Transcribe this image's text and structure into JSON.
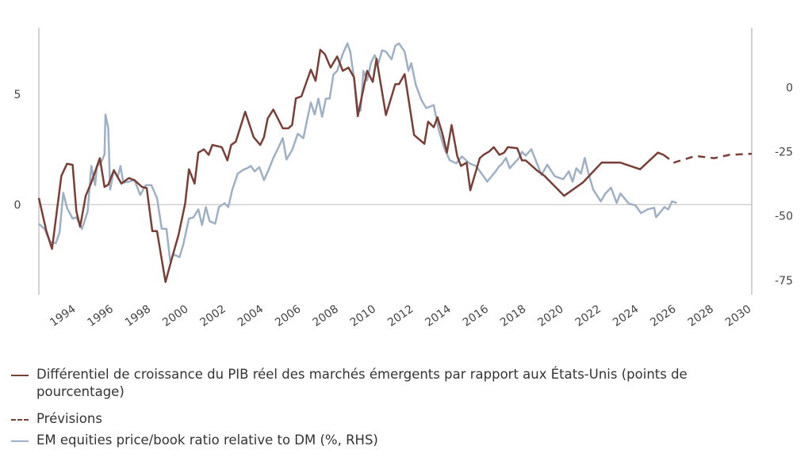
{
  "chart_data": {
    "type": "line",
    "title": "",
    "x_domain": [
      1992,
      2030
    ],
    "x_ticks": [
      "1994",
      "1996",
      "1998",
      "2000",
      "2002",
      "2004",
      "2006",
      "2008",
      "2010",
      "2012",
      "2014",
      "2016",
      "2018",
      "2020",
      "2022",
      "2024",
      "2026",
      "2028",
      "2030"
    ],
    "y_left": {
      "lim": [
        -4,
        8
      ],
      "ticks": [
        "0",
        "5"
      ],
      "tick_values": [
        0,
        5
      ]
    },
    "y_right": {
      "lim": [
        -80,
        23.3
      ],
      "ticks": [
        "0",
        "-25",
        "-50",
        "-75"
      ],
      "tick_values": [
        0,
        -25,
        -50,
        -75
      ]
    },
    "grid": "zero line only",
    "legend_placement": "bottom",
    "colors": {
      "gdp": "#7a3e35",
      "forecast": "#7a3e35",
      "equities": "#9eb0c6",
      "axis": "#c4c4c4"
    },
    "series": [
      {
        "name": "Différentiel de croissance du PIB réel des marchés émergents par rapport aux États-Unis (points de pourcentage)",
        "axis": "left",
        "style": "solid",
        "points": [
          [
            1992.0,
            0.3
          ],
          [
            1992.4,
            -1.2
          ],
          [
            1992.7,
            -2.0
          ],
          [
            1993.2,
            1.3
          ],
          [
            1993.5,
            1.85
          ],
          [
            1993.8,
            1.8
          ],
          [
            1994.0,
            -0.3
          ],
          [
            1994.2,
            -1.0
          ],
          [
            1994.5,
            0.4
          ],
          [
            1994.8,
            1.0
          ],
          [
            1995.25,
            2.1
          ],
          [
            1995.5,
            0.8
          ],
          [
            1995.7,
            0.9
          ],
          [
            1996.0,
            1.55
          ],
          [
            1996.4,
            0.95
          ],
          [
            1996.8,
            1.2
          ],
          [
            1997.1,
            1.1
          ],
          [
            1997.5,
            0.8
          ],
          [
            1997.75,
            0.75
          ],
          [
            1998.05,
            -1.2
          ],
          [
            1998.3,
            -1.2
          ],
          [
            1998.75,
            -3.5
          ],
          [
            1999.1,
            -2.4
          ],
          [
            1999.45,
            -1.35
          ],
          [
            1999.8,
            0.05
          ],
          [
            2000.0,
            1.6
          ],
          [
            2000.3,
            0.95
          ],
          [
            2000.5,
            2.35
          ],
          [
            2000.8,
            2.5
          ],
          [
            2001.05,
            2.25
          ],
          [
            2001.25,
            2.7
          ],
          [
            2001.75,
            2.6
          ],
          [
            2002.05,
            2.0
          ],
          [
            2002.25,
            2.7
          ],
          [
            2002.5,
            2.85
          ],
          [
            2003.0,
            4.2
          ],
          [
            2003.45,
            3.05
          ],
          [
            2003.8,
            2.7
          ],
          [
            2004.0,
            3.05
          ],
          [
            2004.2,
            3.9
          ],
          [
            2004.5,
            4.3
          ],
          [
            2005.0,
            3.45
          ],
          [
            2005.3,
            3.45
          ],
          [
            2005.5,
            3.6
          ],
          [
            2005.7,
            4.8
          ],
          [
            2006.0,
            4.9
          ],
          [
            2006.5,
            6.1
          ],
          [
            2006.75,
            5.6
          ],
          [
            2007.0,
            7.0
          ],
          [
            2007.25,
            6.8
          ],
          [
            2007.55,
            6.2
          ],
          [
            2007.9,
            6.7
          ],
          [
            2008.2,
            6.05
          ],
          [
            2008.5,
            6.2
          ],
          [
            2008.8,
            5.75
          ],
          [
            2009.0,
            4.0
          ],
          [
            2009.5,
            6.05
          ],
          [
            2009.8,
            5.55
          ],
          [
            2010.0,
            6.6
          ],
          [
            2010.5,
            4.05
          ],
          [
            2011.0,
            5.45
          ],
          [
            2011.2,
            5.45
          ],
          [
            2011.5,
            5.9
          ],
          [
            2012.0,
            3.15
          ],
          [
            2012.55,
            2.75
          ],
          [
            2012.75,
            3.75
          ],
          [
            2013.05,
            3.5
          ],
          [
            2013.25,
            3.95
          ],
          [
            2013.5,
            3.25
          ],
          [
            2013.75,
            2.35
          ],
          [
            2014.0,
            3.6
          ],
          [
            2014.3,
            2.2
          ],
          [
            2014.5,
            1.75
          ],
          [
            2014.8,
            1.9
          ],
          [
            2015.0,
            0.65
          ],
          [
            2015.5,
            2.1
          ],
          [
            2015.7,
            2.25
          ],
          [
            2016.0,
            2.4
          ],
          [
            2016.25,
            2.6
          ],
          [
            2016.55,
            2.25
          ],
          [
            2016.8,
            2.35
          ],
          [
            2017.0,
            2.6
          ],
          [
            2017.5,
            2.55
          ],
          [
            2017.75,
            2.0
          ],
          [
            2017.95,
            2.0
          ],
          [
            2018.55,
            1.55
          ],
          [
            2018.95,
            1.3
          ],
          [
            2020.0,
            0.4
          ],
          [
            2021.0,
            1.0
          ],
          [
            2022.0,
            1.9
          ],
          [
            2023.0,
            1.9
          ],
          [
            2024.05,
            1.6
          ],
          [
            2025.0,
            2.35
          ],
          [
            2025.3,
            2.25
          ]
        ]
      },
      {
        "name": "Prévisions",
        "axis": "left",
        "style": "dashed",
        "points": [
          [
            2025.3,
            2.25
          ],
          [
            2025.85,
            1.9
          ],
          [
            2027.0,
            2.2
          ],
          [
            2028.0,
            2.1
          ],
          [
            2028.8,
            2.25
          ],
          [
            2030.0,
            2.3
          ]
        ]
      },
      {
        "name": "EM equities price/book ratio relative to DM (%, RHS)",
        "axis": "right",
        "style": "solid",
        "points": [
          [
            1992.0,
            -53
          ],
          [
            1992.3,
            -55
          ],
          [
            1992.6,
            -60
          ],
          [
            1992.9,
            -60.6
          ],
          [
            1993.1,
            -56.6
          ],
          [
            1993.3,
            -41
          ],
          [
            1993.5,
            -46.8
          ],
          [
            1993.8,
            -51
          ],
          [
            1994.0,
            -50.5
          ],
          [
            1994.3,
            -55
          ],
          [
            1994.6,
            -48.3
          ],
          [
            1994.8,
            -30.5
          ],
          [
            1995.0,
            -38
          ],
          [
            1995.1,
            -30.5
          ],
          [
            1995.3,
            -29.5
          ],
          [
            1995.5,
            -26
          ],
          [
            1995.55,
            -10.5
          ],
          [
            1995.7,
            -15.7
          ],
          [
            1995.8,
            -39.7
          ],
          [
            1996.0,
            -32
          ],
          [
            1996.2,
            -35
          ],
          [
            1996.35,
            -30.5
          ],
          [
            1996.5,
            -37
          ],
          [
            1996.8,
            -36.6
          ],
          [
            1997.1,
            -36
          ],
          [
            1997.4,
            -41.8
          ],
          [
            1997.7,
            -38
          ],
          [
            1998.0,
            -38
          ],
          [
            1998.3,
            -43
          ],
          [
            1998.55,
            -55
          ],
          [
            1998.8,
            -55
          ],
          [
            1999.0,
            -67.4
          ],
          [
            1999.2,
            -65
          ],
          [
            1999.5,
            -66
          ],
          [
            1999.7,
            -61
          ],
          [
            2000.0,
            -51
          ],
          [
            2000.25,
            -50.5
          ],
          [
            2000.5,
            -47.4
          ],
          [
            2000.7,
            -53.5
          ],
          [
            2000.9,
            -46.5
          ],
          [
            2001.1,
            -52
          ],
          [
            2001.4,
            -53
          ],
          [
            2001.6,
            -46.5
          ],
          [
            2001.9,
            -45
          ],
          [
            2002.1,
            -46.5
          ],
          [
            2002.3,
            -40
          ],
          [
            2002.6,
            -33.5
          ],
          [
            2002.9,
            -32
          ],
          [
            2003.1,
            -31.4
          ],
          [
            2003.3,
            -30.5
          ],
          [
            2003.5,
            -32.6
          ],
          [
            2003.75,
            -31
          ],
          [
            2004.0,
            -36
          ],
          [
            2004.25,
            -32
          ],
          [
            2004.5,
            -27.4
          ],
          [
            2004.75,
            -23.7
          ],
          [
            2005.0,
            -19.7
          ],
          [
            2005.2,
            -28
          ],
          [
            2005.5,
            -24.3
          ],
          [
            2005.8,
            -18
          ],
          [
            2006.1,
            -19.7
          ],
          [
            2006.3,
            -12.6
          ],
          [
            2006.5,
            -5.8
          ],
          [
            2006.7,
            -10.5
          ],
          [
            2006.9,
            -4.3
          ],
          [
            2007.1,
            -11.4
          ],
          [
            2007.3,
            -4.3
          ],
          [
            2007.5,
            -4.3
          ],
          [
            2007.7,
            5
          ],
          [
            2007.9,
            6.5
          ],
          [
            2008.2,
            13.2
          ],
          [
            2008.45,
            17.2
          ],
          [
            2008.6,
            14
          ],
          [
            2008.8,
            3.4
          ],
          [
            2009.0,
            -8.3
          ],
          [
            2009.15,
            -9
          ],
          [
            2009.3,
            6.5
          ],
          [
            2009.5,
            2.8
          ],
          [
            2009.7,
            9.5
          ],
          [
            2009.9,
            12.6
          ],
          [
            2010.1,
            9.5
          ],
          [
            2010.3,
            14.5
          ],
          [
            2010.5,
            14
          ],
          [
            2010.8,
            11
          ],
          [
            2011.0,
            16.3
          ],
          [
            2011.2,
            17.2
          ],
          [
            2011.5,
            14
          ],
          [
            2011.7,
            6.5
          ],
          [
            2011.85,
            9.5
          ],
          [
            2012.1,
            0.9
          ],
          [
            2012.4,
            -4.9
          ],
          [
            2012.65,
            -8
          ],
          [
            2013.05,
            -6.8
          ],
          [
            2013.3,
            -16
          ],
          [
            2013.6,
            -23.4
          ],
          [
            2013.9,
            -28.3
          ],
          [
            2014.25,
            -29.5
          ],
          [
            2014.55,
            -26.8
          ],
          [
            2014.95,
            -29.5
          ],
          [
            2015.3,
            -30.5
          ],
          [
            2015.7,
            -34.5
          ],
          [
            2015.9,
            -36.6
          ],
          [
            2016.35,
            -32.6
          ],
          [
            2016.5,
            -31
          ],
          [
            2016.7,
            -29.5
          ],
          [
            2016.9,
            -27.4
          ],
          [
            2017.1,
            -31.4
          ],
          [
            2017.6,
            -27.4
          ],
          [
            2017.75,
            -25
          ],
          [
            2017.95,
            -26.5
          ],
          [
            2018.25,
            -24
          ],
          [
            2018.55,
            -29.5
          ],
          [
            2018.8,
            -34
          ],
          [
            2019.1,
            -30
          ],
          [
            2019.5,
            -34.5
          ],
          [
            2019.95,
            -35.7
          ],
          [
            2020.25,
            -32.6
          ],
          [
            2020.45,
            -36.6
          ],
          [
            2020.65,
            -31.4
          ],
          [
            2020.9,
            -33.5
          ],
          [
            2021.1,
            -27.4
          ],
          [
            2021.3,
            -33.5
          ],
          [
            2021.55,
            -39.7
          ],
          [
            2021.95,
            -44.3
          ],
          [
            2022.2,
            -41.2
          ],
          [
            2022.5,
            -39
          ],
          [
            2022.8,
            -44.9
          ],
          [
            2023.0,
            -41.2
          ],
          [
            2023.45,
            -45.2
          ],
          [
            2023.8,
            -45.8
          ],
          [
            2024.1,
            -48.9
          ],
          [
            2024.45,
            -47.4
          ],
          [
            2024.8,
            -46.8
          ],
          [
            2024.9,
            -50.5
          ],
          [
            2025.15,
            -48.3
          ],
          [
            2025.35,
            -46.5
          ],
          [
            2025.55,
            -47.4
          ],
          [
            2025.75,
            -44.3
          ],
          [
            2026.0,
            -44.9
          ]
        ]
      }
    ]
  },
  "legend": {
    "gdp_line1": "Différentiel de croissance du PIB réel des marchés émergents par rapport aux États-Unis (points de",
    "gdp_line2": "pourcentage)",
    "forecast": "Prévisions",
    "equities": "EM equities price/book ratio relative to DM (%, RHS)"
  }
}
